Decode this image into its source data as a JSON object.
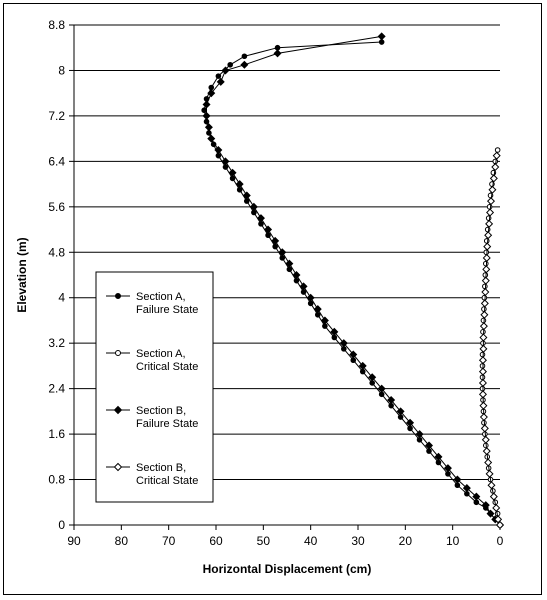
{
  "chart_data": {
    "type": "line",
    "xlabel": "Horizontal Displacement (cm)",
    "ylabel": "Elevation (m)",
    "xlim": [
      90,
      0
    ],
    "ylim": [
      0,
      8.8
    ],
    "x_reversed": true,
    "x_ticks": [
      90,
      80,
      70,
      60,
      50,
      40,
      30,
      20,
      10,
      0
    ],
    "y_ticks": [
      0,
      0.8,
      1.6,
      2.4,
      3.2,
      4,
      4.8,
      5.6,
      6.4,
      7.2,
      8,
      8.8
    ],
    "grid": "horizontal",
    "legend_position": "left-center",
    "series": [
      {
        "name_lines": [
          "Section A,",
          "Failure State"
        ],
        "marker": "circle",
        "fill": "#000000",
        "points": [
          [
            0,
            0
          ],
          [
            1,
            0.1
          ],
          [
            2,
            0.2
          ],
          [
            3,
            0.3
          ],
          [
            5,
            0.4
          ],
          [
            7,
            0.55
          ],
          [
            9,
            0.7
          ],
          [
            11,
            0.9
          ],
          [
            13,
            1.1
          ],
          [
            15,
            1.3
          ],
          [
            17,
            1.5
          ],
          [
            19,
            1.7
          ],
          [
            21,
            1.9
          ],
          [
            23,
            2.1
          ],
          [
            25,
            2.3
          ],
          [
            27,
            2.5
          ],
          [
            29,
            2.7
          ],
          [
            31,
            2.9
          ],
          [
            33,
            3.1
          ],
          [
            35,
            3.3
          ],
          [
            37,
            3.5
          ],
          [
            38.5,
            3.7
          ],
          [
            40,
            3.9
          ],
          [
            41.5,
            4.1
          ],
          [
            43,
            4.3
          ],
          [
            44.5,
            4.5
          ],
          [
            46,
            4.7
          ],
          [
            47.5,
            4.9
          ],
          [
            49,
            5.1
          ],
          [
            50.5,
            5.3
          ],
          [
            52,
            5.5
          ],
          [
            53.5,
            5.7
          ],
          [
            55,
            5.9
          ],
          [
            56.5,
            6.1
          ],
          [
            58,
            6.3
          ],
          [
            59.5,
            6.5
          ],
          [
            60.5,
            6.7
          ],
          [
            61.5,
            6.9
          ],
          [
            62,
            7.1
          ],
          [
            62.5,
            7.3
          ],
          [
            62,
            7.5
          ],
          [
            61,
            7.7
          ],
          [
            59.5,
            7.9
          ],
          [
            57,
            8.1
          ],
          [
            54,
            8.25
          ],
          [
            47,
            8.4
          ],
          [
            25,
            8.5
          ]
        ]
      },
      {
        "name_lines": [
          "Section A,",
          "Critical State"
        ],
        "marker": "circle",
        "fill": "#ffffff",
        "points": [
          [
            0,
            0
          ],
          [
            0.5,
            0.2
          ],
          [
            1,
            0.4
          ],
          [
            1.5,
            0.6
          ],
          [
            2,
            0.8
          ],
          [
            2.4,
            1.0
          ],
          [
            2.7,
            1.2
          ],
          [
            3,
            1.4
          ],
          [
            3.2,
            1.6
          ],
          [
            3.4,
            1.8
          ],
          [
            3.5,
            2.0
          ],
          [
            3.6,
            2.2
          ],
          [
            3.7,
            2.4
          ],
          [
            3.7,
            2.6
          ],
          [
            3.7,
            2.8
          ],
          [
            3.7,
            3.0
          ],
          [
            3.6,
            3.2
          ],
          [
            3.6,
            3.4
          ],
          [
            3.5,
            3.6
          ],
          [
            3.4,
            3.8
          ],
          [
            3.3,
            4.0
          ],
          [
            3.2,
            4.2
          ],
          [
            3.1,
            4.4
          ],
          [
            3.0,
            4.6
          ],
          [
            2.9,
            4.8
          ],
          [
            2.8,
            5.0
          ],
          [
            2.6,
            5.2
          ],
          [
            2.4,
            5.4
          ],
          [
            2.2,
            5.6
          ],
          [
            2.0,
            5.8
          ],
          [
            1.7,
            6.0
          ],
          [
            1.4,
            6.2
          ],
          [
            1.0,
            6.4
          ],
          [
            0.5,
            6.6
          ]
        ]
      },
      {
        "name_lines": [
          "Section B,",
          "Failure State"
        ],
        "marker": "diamond",
        "fill": "#000000",
        "points": [
          [
            0,
            0
          ],
          [
            1,
            0.1
          ],
          [
            2,
            0.2
          ],
          [
            3,
            0.35
          ],
          [
            5,
            0.5
          ],
          [
            7,
            0.65
          ],
          [
            9,
            0.8
          ],
          [
            11,
            1.0
          ],
          [
            13,
            1.2
          ],
          [
            15,
            1.4
          ],
          [
            17,
            1.6
          ],
          [
            19,
            1.8
          ],
          [
            21,
            2.0
          ],
          [
            23,
            2.2
          ],
          [
            25,
            2.4
          ],
          [
            27,
            2.6
          ],
          [
            29,
            2.8
          ],
          [
            31,
            3.0
          ],
          [
            33,
            3.2
          ],
          [
            35,
            3.4
          ],
          [
            37,
            3.6
          ],
          [
            38.5,
            3.8
          ],
          [
            40,
            4.0
          ],
          [
            41.5,
            4.2
          ],
          [
            43,
            4.4
          ],
          [
            44.5,
            4.6
          ],
          [
            46,
            4.8
          ],
          [
            47.5,
            5.0
          ],
          [
            49,
            5.2
          ],
          [
            50.5,
            5.4
          ],
          [
            52,
            5.6
          ],
          [
            53.5,
            5.8
          ],
          [
            55,
            6.0
          ],
          [
            56.5,
            6.2
          ],
          [
            58,
            6.4
          ],
          [
            59.5,
            6.6
          ],
          [
            61,
            6.8
          ],
          [
            61.5,
            7.0
          ],
          [
            62,
            7.2
          ],
          [
            62,
            7.4
          ],
          [
            61,
            7.6
          ],
          [
            59,
            7.8
          ],
          [
            58,
            8.0
          ],
          [
            54,
            8.1
          ],
          [
            47,
            8.3
          ],
          [
            25,
            8.6
          ]
        ]
      },
      {
        "name_lines": [
          "Section B,",
          "Critical State"
        ],
        "marker": "diamond",
        "fill": "#ffffff",
        "points": [
          [
            0,
            0
          ],
          [
            0.4,
            0.1
          ],
          [
            0.8,
            0.3
          ],
          [
            1.3,
            0.5
          ],
          [
            1.8,
            0.7
          ],
          [
            2.2,
            0.9
          ],
          [
            2.5,
            1.1
          ],
          [
            2.8,
            1.3
          ],
          [
            3.0,
            1.5
          ],
          [
            3.2,
            1.7
          ],
          [
            3.4,
            1.9
          ],
          [
            3.5,
            2.1
          ],
          [
            3.6,
            2.3
          ],
          [
            3.6,
            2.5
          ],
          [
            3.6,
            2.7
          ],
          [
            3.6,
            2.9
          ],
          [
            3.5,
            3.1
          ],
          [
            3.5,
            3.3
          ],
          [
            3.4,
            3.5
          ],
          [
            3.3,
            3.7
          ],
          [
            3.2,
            3.9
          ],
          [
            3.1,
            4.1
          ],
          [
            3.0,
            4.3
          ],
          [
            2.9,
            4.5
          ],
          [
            2.8,
            4.7
          ],
          [
            2.7,
            4.9
          ],
          [
            2.5,
            5.1
          ],
          [
            2.3,
            5.3
          ],
          [
            2.1,
            5.5
          ],
          [
            1.9,
            5.7
          ],
          [
            1.6,
            5.9
          ],
          [
            1.3,
            6.1
          ],
          [
            1.0,
            6.3
          ],
          [
            0.7,
            6.5
          ]
        ]
      }
    ]
  }
}
